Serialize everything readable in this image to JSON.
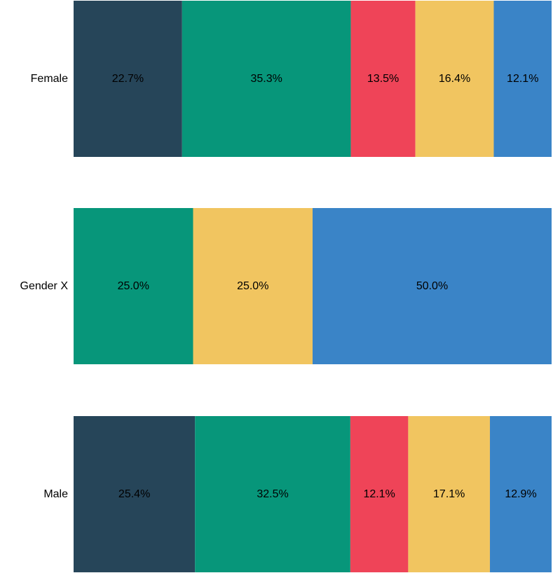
{
  "chart_data": {
    "type": "bar",
    "orientation": "horizontal",
    "stacked": true,
    "normalized": true,
    "categories": [
      "Female",
      "Gender X",
      "Male"
    ],
    "segments": [
      [
        {
          "value": 22.7,
          "label": "22.7%",
          "color": "#264559"
        },
        {
          "value": 35.3,
          "label": "35.3%",
          "color": "#07967A"
        },
        {
          "value": 13.5,
          "label": "13.5%",
          "color": "#EF4458"
        },
        {
          "value": 16.4,
          "label": "16.4%",
          "color": "#F1C560"
        },
        {
          "value": 12.1,
          "label": "12.1%",
          "color": "#3A84C7"
        }
      ],
      [
        {
          "value": 25.0,
          "label": "25.0%",
          "color": "#07967A"
        },
        {
          "value": 25.0,
          "label": "25.0%",
          "color": "#F1C560"
        },
        {
          "value": 50.0,
          "label": "50.0%",
          "color": "#3A84C7"
        }
      ],
      [
        {
          "value": 25.4,
          "label": "25.4%",
          "color": "#264559"
        },
        {
          "value": 32.5,
          "label": "32.5%",
          "color": "#07967A"
        },
        {
          "value": 12.1,
          "label": "12.1%",
          "color": "#EF4458"
        },
        {
          "value": 17.1,
          "label": "17.1%",
          "color": "#F1C560"
        },
        {
          "value": 12.9,
          "label": "12.9%",
          "color": "#3A84C7"
        }
      ]
    ],
    "xlim": [
      0,
      100
    ],
    "grid": false,
    "legend": "none",
    "title": "",
    "xlabel": "",
    "ylabel": ""
  }
}
